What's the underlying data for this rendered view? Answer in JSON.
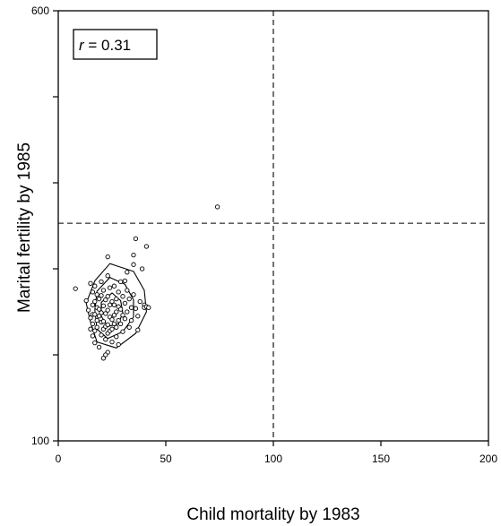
{
  "chart_data": {
    "type": "scatter",
    "xlabel": "Child mortality by 1983",
    "ylabel": "Marital fertility by 1985",
    "xlim": [
      0,
      200
    ],
    "ylim": [
      100,
      600
    ],
    "xticks": [
      "0",
      "50",
      "100",
      "150",
      "200"
    ],
    "yticks": [
      "100",
      "",
      "",
      "",
      "",
      "600"
    ],
    "reference_lines": {
      "x": 100,
      "y": 353
    },
    "annotation": {
      "symbol": "r",
      "text": " = 0.31"
    },
    "points": [
      [
        8,
        277
      ],
      [
        13,
        263
      ],
      [
        14,
        252
      ],
      [
        15,
        283
      ],
      [
        15,
        243
      ],
      [
        15,
        230
      ],
      [
        16,
        273
      ],
      [
        16,
        258
      ],
      [
        16,
        247
      ],
      [
        16,
        236
      ],
      [
        16,
        222
      ],
      [
        17,
        280
      ],
      [
        17,
        262
      ],
      [
        17,
        247
      ],
      [
        17,
        228
      ],
      [
        17,
        214
      ],
      [
        18,
        270
      ],
      [
        18,
        255
      ],
      [
        18,
        240
      ],
      [
        18,
        232
      ],
      [
        19,
        265
      ],
      [
        19,
        253
      ],
      [
        19,
        245
      ],
      [
        20,
        285
      ],
      [
        20,
        269
      ],
      [
        20,
        249
      ],
      [
        20,
        238
      ],
      [
        20,
        223
      ],
      [
        21,
        275
      ],
      [
        21,
        257
      ],
      [
        21,
        239
      ],
      [
        21,
        230
      ],
      [
        22,
        264
      ],
      [
        22,
        248
      ],
      [
        22,
        233
      ],
      [
        22,
        218
      ],
      [
        23,
        292
      ],
      [
        23,
        268
      ],
      [
        23,
        252
      ],
      [
        23,
        235
      ],
      [
        23,
        225
      ],
      [
        24,
        278
      ],
      [
        24,
        258
      ],
      [
        24,
        244
      ],
      [
        24,
        228
      ],
      [
        25,
        262
      ],
      [
        25,
        241
      ],
      [
        25,
        230
      ],
      [
        25,
        215
      ],
      [
        26,
        280
      ],
      [
        26,
        258
      ],
      [
        26,
        246
      ],
      [
        26,
        236
      ],
      [
        27,
        265
      ],
      [
        27,
        250
      ],
      [
        27,
        232
      ],
      [
        27,
        221
      ],
      [
        28,
        273
      ],
      [
        28,
        256
      ],
      [
        28,
        240
      ],
      [
        28,
        212
      ],
      [
        29,
        285
      ],
      [
        29,
        253
      ],
      [
        29,
        236
      ],
      [
        30,
        268
      ],
      [
        30,
        246
      ],
      [
        30,
        227
      ],
      [
        31,
        286
      ],
      [
        31,
        260
      ],
      [
        31,
        242
      ],
      [
        32,
        296
      ],
      [
        32,
        275
      ],
      [
        32,
        250
      ],
      [
        33,
        265
      ],
      [
        33,
        232
      ],
      [
        34,
        255
      ],
      [
        34,
        240
      ],
      [
        35,
        316
      ],
      [
        35,
        305
      ],
      [
        35,
        270
      ],
      [
        36,
        254
      ],
      [
        37,
        245
      ],
      [
        37,
        229
      ],
      [
        38,
        262
      ],
      [
        39,
        300
      ],
      [
        40,
        258
      ],
      [
        40,
        255
      ],
      [
        41,
        326
      ],
      [
        41,
        256
      ],
      [
        42,
        255
      ],
      [
        23,
        203
      ],
      [
        19,
        209
      ],
      [
        21,
        196
      ],
      [
        22,
        200
      ],
      [
        23,
        314
      ],
      [
        36,
        335
      ],
      [
        74,
        372
      ]
    ],
    "contours": [
      [
        [
          24,
          306
        ],
        [
          35,
          297
        ],
        [
          40,
          275
        ],
        [
          41,
          250
        ],
        [
          36,
          225
        ],
        [
          27,
          208
        ],
        [
          18,
          215
        ],
        [
          15,
          238
        ],
        [
          13,
          260
        ],
        [
          17,
          286
        ]
      ],
      [
        [
          24,
          290
        ],
        [
          31,
          282
        ],
        [
          35,
          264
        ],
        [
          35,
          244
        ],
        [
          30,
          227
        ],
        [
          23,
          219
        ],
        [
          18,
          230
        ],
        [
          17,
          252
        ],
        [
          18,
          274
        ]
      ],
      [
        [
          25,
          272
        ],
        [
          29,
          263
        ],
        [
          30,
          249
        ],
        [
          28,
          236
        ],
        [
          23,
          233
        ],
        [
          20,
          245
        ],
        [
          20,
          261
        ]
      ]
    ]
  }
}
